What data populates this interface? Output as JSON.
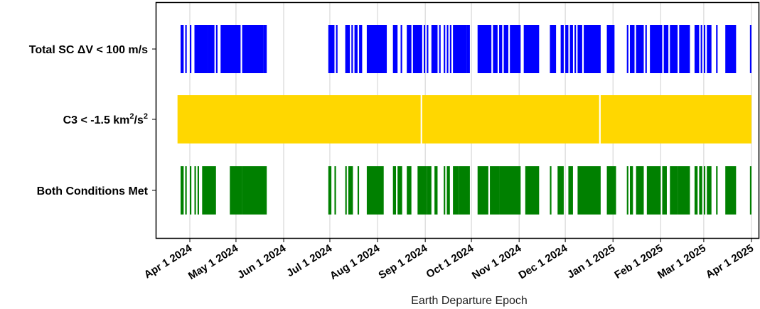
{
  "chart_data": {
    "type": "timeline",
    "xlabel": "Earth Departure Epoch",
    "x_range": [
      "2024-03-24",
      "2025-04-01"
    ],
    "grid": true,
    "x_ticks": [
      "Apr 1 2024",
      "May 1 2024",
      "Jun 1 2024",
      "Jul 1 2024",
      "Aug 1 2024",
      "Sep 1 2024",
      "Oct 1 2024",
      "Nov 1 2024",
      "Dec 1 2024",
      "Jan 1 2025",
      "Feb 1 2025",
      "Mar 1 2025",
      "Apr 1 2025"
    ],
    "tick_dates": [
      "2024-04-01",
      "2024-05-01",
      "2024-06-01",
      "2024-07-01",
      "2024-08-01",
      "2024-09-01",
      "2024-10-01",
      "2024-11-01",
      "2024-12-01",
      "2025-01-01",
      "2025-02-01",
      "2025-03-01",
      "2025-04-01"
    ],
    "rows": [
      {
        "label_main": "Total SC ΔV < 100 m/s",
        "label_sup": "",
        "label_tail": "",
        "color": "#0000ff",
        "intervals": [
          [
            "2024-03-26",
            "2024-03-28"
          ],
          [
            "2024-03-29",
            "2024-03-30"
          ],
          [
            "2024-04-01",
            "2024-04-02"
          ],
          [
            "2024-04-04",
            "2024-04-13"
          ],
          [
            "2024-04-13",
            "2024-04-17"
          ],
          [
            "2024-04-18",
            "2024-04-19"
          ],
          [
            "2024-04-21",
            "2024-05-04"
          ],
          [
            "2024-05-05",
            "2024-05-19"
          ],
          [
            "2024-05-19",
            "2024-05-21"
          ],
          [
            "2024-06-30",
            "2024-07-04"
          ],
          [
            "2024-07-05",
            "2024-07-06"
          ],
          [
            "2024-07-11",
            "2024-07-14"
          ],
          [
            "2024-07-15",
            "2024-07-16"
          ],
          [
            "2024-07-17",
            "2024-07-19"
          ],
          [
            "2024-07-20",
            "2024-07-22"
          ],
          [
            "2024-07-25",
            "2024-08-07"
          ],
          [
            "2024-08-11",
            "2024-08-14"
          ],
          [
            "2024-08-16",
            "2024-08-17"
          ],
          [
            "2024-08-20",
            "2024-08-23"
          ],
          [
            "2024-08-24",
            "2024-08-28"
          ],
          [
            "2024-08-28",
            "2024-08-30"
          ],
          [
            "2024-08-31",
            "2024-09-01"
          ],
          [
            "2024-09-02",
            "2024-09-03"
          ],
          [
            "2024-09-05",
            "2024-09-09"
          ],
          [
            "2024-09-10",
            "2024-09-11"
          ],
          [
            "2024-09-13",
            "2024-09-14"
          ],
          [
            "2024-09-15",
            "2024-09-16"
          ],
          [
            "2024-09-17",
            "2024-09-18"
          ],
          [
            "2024-09-19",
            "2024-09-28"
          ],
          [
            "2024-09-28",
            "2024-09-30"
          ],
          [
            "2024-10-05",
            "2024-10-14"
          ],
          [
            "2024-10-15",
            "2024-10-18"
          ],
          [
            "2024-10-19",
            "2024-10-21"
          ],
          [
            "2024-10-22",
            "2024-10-25"
          ],
          [
            "2024-10-26",
            "2024-11-02"
          ],
          [
            "2024-11-04",
            "2024-11-14"
          ],
          [
            "2024-11-21",
            "2024-11-25"
          ],
          [
            "2024-11-28",
            "2024-11-30"
          ],
          [
            "2024-12-01",
            "2024-12-03"
          ],
          [
            "2024-12-04",
            "2024-12-06"
          ],
          [
            "2024-12-07",
            "2024-12-08"
          ],
          [
            "2024-12-09",
            "2024-12-12"
          ],
          [
            "2024-12-13",
            "2024-12-24"
          ],
          [
            "2024-12-28",
            "2025-01-02"
          ],
          [
            "2025-01-10",
            "2025-01-11"
          ],
          [
            "2025-01-12",
            "2025-01-15"
          ],
          [
            "2025-01-16",
            "2025-01-21"
          ],
          [
            "2025-01-22",
            "2025-01-23"
          ],
          [
            "2025-01-25",
            "2025-02-02"
          ],
          [
            "2025-02-03",
            "2025-02-06"
          ],
          [
            "2025-02-07",
            "2025-02-12"
          ],
          [
            "2025-02-13",
            "2025-02-20"
          ],
          [
            "2025-02-23",
            "2025-02-26"
          ],
          [
            "2025-02-27",
            "2025-02-28"
          ],
          [
            "2025-03-01",
            "2025-03-02"
          ],
          [
            "2025-03-03",
            "2025-03-06"
          ],
          [
            "2025-03-09",
            "2025-03-10"
          ],
          [
            "2025-03-15",
            "2025-03-22"
          ],
          [
            "2025-03-31",
            "2025-04-01"
          ]
        ]
      },
      {
        "label_main": "C3 < -1.5 km",
        "label_sup": "2",
        "label_tail": "/s",
        "label_tail_sup": "2",
        "color": "#ffd700",
        "intervals": [
          [
            "2024-03-24",
            "2024-08-29"
          ],
          [
            "2024-08-30",
            "2024-12-23"
          ],
          [
            "2024-12-24",
            "2025-04-01"
          ]
        ]
      },
      {
        "label_main": "Both Conditions Met",
        "label_sup": "",
        "label_tail": "",
        "color": "#008000",
        "intervals": [
          [
            "2024-03-26",
            "2024-03-28"
          ],
          [
            "2024-03-29",
            "2024-03-30"
          ],
          [
            "2024-04-01",
            "2024-04-02"
          ],
          [
            "2024-04-04",
            "2024-04-05"
          ],
          [
            "2024-04-06",
            "2024-04-07"
          ],
          [
            "2024-04-09",
            "2024-04-18"
          ],
          [
            "2024-04-27",
            "2024-05-05"
          ],
          [
            "2024-05-05",
            "2024-05-21"
          ],
          [
            "2024-06-30",
            "2024-07-02"
          ],
          [
            "2024-07-04",
            "2024-07-05"
          ],
          [
            "2024-07-11",
            "2024-07-12"
          ],
          [
            "2024-07-13",
            "2024-07-16"
          ],
          [
            "2024-07-19",
            "2024-07-20"
          ],
          [
            "2024-07-25",
            "2024-08-05"
          ],
          [
            "2024-08-11",
            "2024-08-13"
          ],
          [
            "2024-08-14",
            "2024-08-17"
          ],
          [
            "2024-08-20",
            "2024-08-23"
          ],
          [
            "2024-08-27",
            "2024-09-02"
          ],
          [
            "2024-09-02",
            "2024-09-05"
          ],
          [
            "2024-09-07",
            "2024-09-09"
          ],
          [
            "2024-09-13",
            "2024-09-14"
          ],
          [
            "2024-09-15",
            "2024-09-17"
          ],
          [
            "2024-09-19",
            "2024-09-23"
          ],
          [
            "2024-09-23",
            "2024-09-30"
          ],
          [
            "2024-10-05",
            "2024-10-12"
          ],
          [
            "2024-10-13",
            "2024-10-19"
          ],
          [
            "2024-10-19",
            "2024-11-02"
          ],
          [
            "2024-11-05",
            "2024-11-14"
          ],
          [
            "2024-11-21",
            "2024-11-22"
          ],
          [
            "2024-11-26",
            "2024-11-30"
          ],
          [
            "2024-12-03",
            "2024-12-06"
          ],
          [
            "2024-12-09",
            "2024-12-24"
          ],
          [
            "2024-12-28",
            "2025-01-03"
          ],
          [
            "2025-01-10",
            "2025-01-11"
          ],
          [
            "2025-01-12",
            "2025-01-14"
          ],
          [
            "2025-01-16",
            "2025-01-21"
          ],
          [
            "2025-01-23",
            "2025-02-01"
          ],
          [
            "2025-02-02",
            "2025-02-05"
          ],
          [
            "2025-02-07",
            "2025-02-12"
          ],
          [
            "2025-02-12",
            "2025-02-20"
          ],
          [
            "2025-02-23",
            "2025-02-25"
          ],
          [
            "2025-02-26",
            "2025-02-28"
          ],
          [
            "2025-03-01",
            "2025-03-02"
          ],
          [
            "2025-03-03",
            "2025-03-06"
          ],
          [
            "2025-03-09",
            "2025-03-10"
          ],
          [
            "2025-03-15",
            "2025-03-22"
          ],
          [
            "2025-03-31",
            "2025-04-01"
          ]
        ]
      }
    ]
  }
}
